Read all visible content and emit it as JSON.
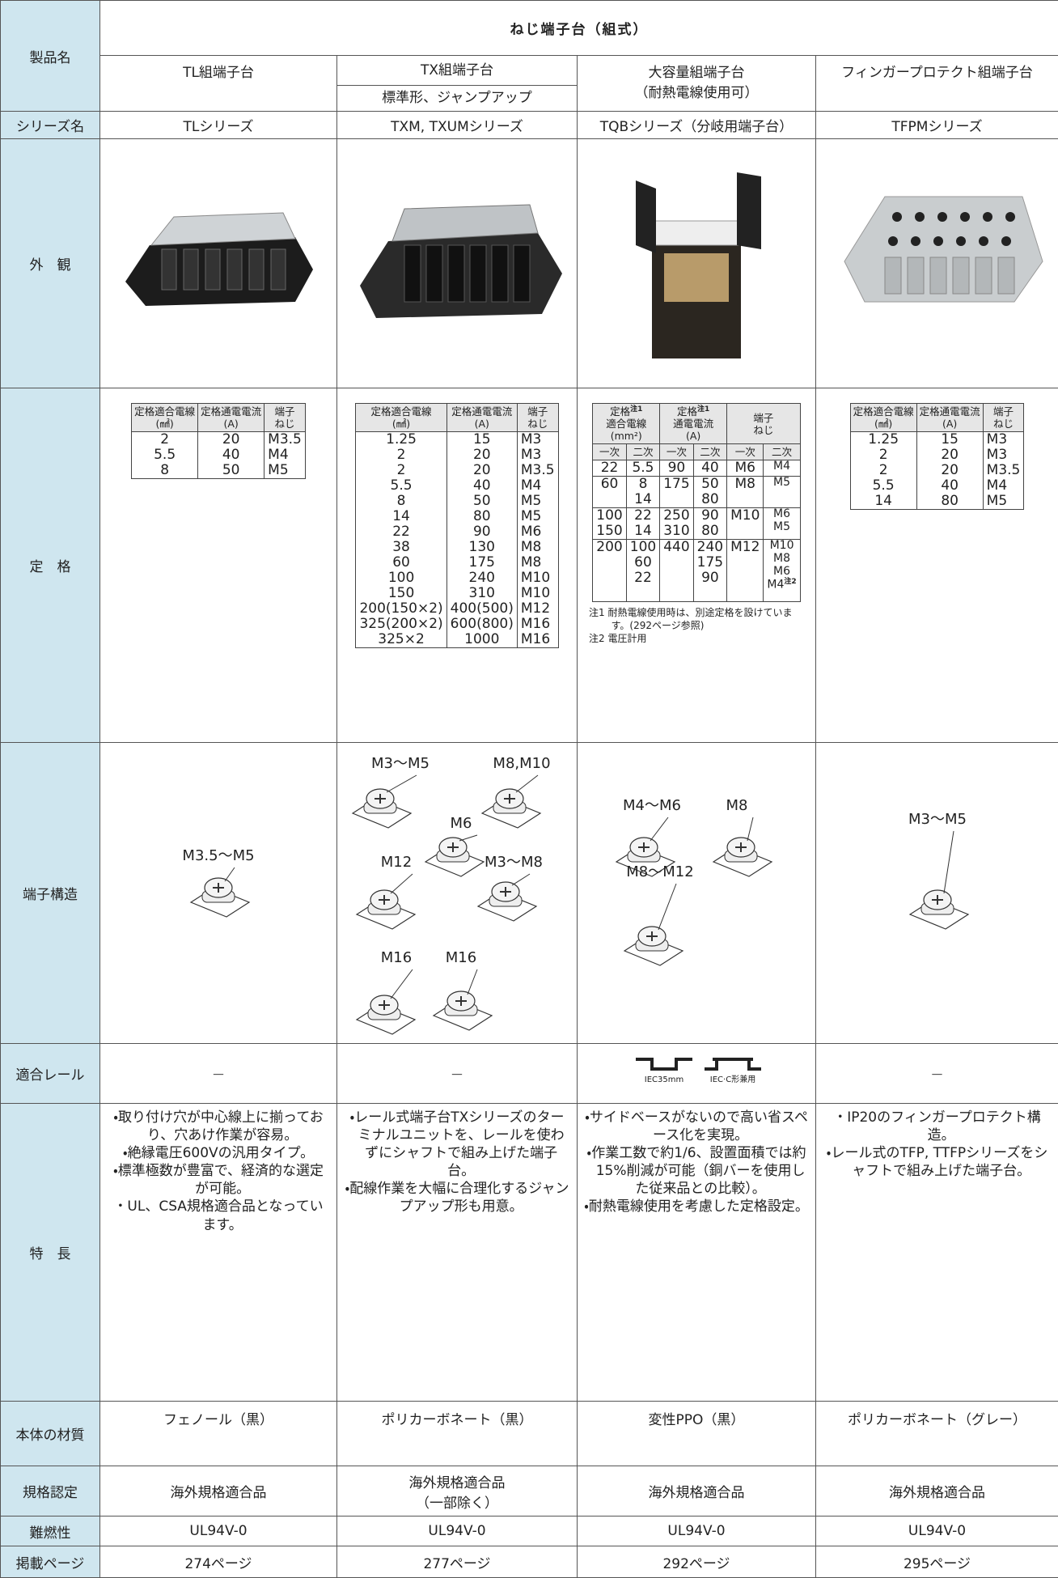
{
  "header": {
    "label": "製品名",
    "title": "ねじ端子台（組式）"
  },
  "products": [
    {
      "name": "TL組端子台"
    },
    {
      "name": "TX組端子台",
      "sub": "標準形、ジャンプアップ"
    },
    {
      "name": "大容量組端子台",
      "name2": "（耐熱電線使用可）"
    },
    {
      "name": "フィンガープロテクト組端子台"
    }
  ],
  "labels": {
    "series": "シリーズ名",
    "appearance": "外　観",
    "rating": "定　格",
    "structure": "端子構造",
    "rail": "適合レール",
    "features": "特　長",
    "material": "本体の材質",
    "standard": "規格認定",
    "flame": "難燃性",
    "page": "掲載ページ"
  },
  "series": [
    "TLシリーズ",
    "TXM, TXUMシリーズ",
    "TQBシリーズ（分岐用端子台）",
    "TFPMシリーズ"
  ],
  "ratings": [
    {
      "headers": [
        [
          "定格適合電線",
          "(㎟)"
        ],
        [
          "定格通電電流",
          "(A)"
        ],
        [
          "端子",
          "ねじ"
        ]
      ],
      "rows": [
        [
          "2",
          "20",
          "M3.5"
        ],
        [
          "5.5",
          "40",
          "M4"
        ],
        [
          "8",
          "50",
          "M5"
        ]
      ]
    },
    {
      "headers": [
        [
          "定格適合電線",
          "(㎟)"
        ],
        [
          "定格通電電流",
          "(A)"
        ],
        [
          "端子",
          "ねじ"
        ]
      ],
      "rows": [
        [
          "1.25",
          "15",
          "M3"
        ],
        [
          "2",
          "20",
          "M3"
        ],
        [
          "2",
          "20",
          "M3.5"
        ],
        [
          "5.5",
          "40",
          "M4"
        ],
        [
          "8",
          "50",
          "M5"
        ],
        [
          "14",
          "80",
          "M5"
        ],
        [
          "22",
          "90",
          "M6"
        ],
        [
          "38",
          "130",
          "M8"
        ],
        [
          "60",
          "175",
          "M8"
        ],
        [
          "100",
          "240",
          "M10"
        ],
        [
          "150",
          "310",
          "M10"
        ],
        [
          "200(150×2)",
          "400(500)",
          "M12"
        ],
        [
          "325(200×2)",
          "600(800)",
          "M16"
        ],
        [
          "325×2",
          "1000",
          "M16"
        ]
      ]
    },
    {
      "headers": [
        {
          "lines": [
            "定格",
            "適合電線",
            "(mm²)"
          ],
          "note": "注1"
        },
        {
          "lines": [
            "定格",
            "通電電流",
            "(A)"
          ],
          "note": "注1"
        },
        {
          "lines": [
            "端子",
            "ねじ"
          ]
        }
      ],
      "sub": [
        "一次",
        "二次",
        "一次",
        "二次",
        "一次",
        "二次"
      ],
      "groups": [
        [
          [
            "22",
            "5.5",
            "90",
            "40",
            "M6",
            "M4"
          ]
        ],
        [
          [
            "60",
            "8",
            "175",
            "50",
            "M8",
            "M5"
          ],
          [
            null,
            "14",
            null,
            "80",
            null,
            null
          ]
        ],
        [
          [
            "100",
            "22",
            "250",
            "90",
            "M10",
            "M6"
          ],
          [
            "150",
            "14",
            "310",
            "80",
            null,
            "M5"
          ]
        ],
        [
          [
            "200",
            "100",
            "440",
            "240",
            "M12",
            "M10"
          ],
          [
            null,
            "60",
            null,
            "175",
            null,
            "M8"
          ],
          [
            null,
            "22",
            null,
            "90",
            null,
            "M6"
          ],
          [
            null,
            null,
            null,
            null,
            null,
            {
              "text": "M4",
              "note": "注2"
            }
          ]
        ]
      ],
      "notes": [
        "注1 耐熱電線使用時は、別途定格を設けています。(292ページ参照)",
        "注2 電圧計用"
      ]
    },
    {
      "headers": [
        [
          "定格適合電線",
          "(㎟)"
        ],
        [
          "定格通電電流",
          "(A)"
        ],
        [
          "端子",
          "ねじ"
        ]
      ],
      "rows": [
        [
          "1.25",
          "15",
          "M3"
        ],
        [
          "2",
          "20",
          "M3"
        ],
        [
          "2",
          "20",
          "M3.5"
        ],
        [
          "5.5",
          "40",
          "M4"
        ],
        [
          "14",
          "80",
          "M5"
        ]
      ]
    }
  ],
  "structures": [
    [
      "M3.5～M5"
    ],
    [
      "M3～M5",
      "M8,M10",
      "M6",
      "M12",
      "M3～M8",
      "M16",
      "M16"
    ],
    [
      "M4～M6",
      "M8",
      "M8～M12"
    ],
    [
      "M3～M5"
    ]
  ],
  "rails": [
    [
      "－"
    ],
    [
      "－"
    ],
    [
      "IEC35mm",
      "IEC·C形兼用"
    ],
    [
      "－"
    ]
  ],
  "features": [
    [
      "・取り付け穴が中心線上に揃っており、穴あけ作業が容易。",
      "・絶縁電圧600Vの汎用タイプ。",
      "・標準極数が豊富で、経済的な選定が可能。",
      "・UL、CSA規格適合品となっています。"
    ],
    [
      "・レール式端子台TXシリーズのターミナルユニットを、レールを使わずにシャフトで組み上げた端子台。",
      "・配線作業を大幅に合理化するジャンプアップ形も用意。"
    ],
    [
      "・サイドベースがないので高い省スペース化を実現。",
      "・作業工数で約1/6、設置面積では約15%削減が可能（銅バーを使用した従来品との比較）。",
      "・耐熱電線使用を考慮した定格設定。"
    ],
    [
      "・IP20のフィンガープロテクト構造。",
      "・レール式のTFP, TTFPシリーズをシャフトで組み上げた端子台。"
    ]
  ],
  "material": [
    "フェノール（黒）",
    "ポリカーボネート（黒）",
    "変性PPO（黒）",
    "ポリカーボネート（グレー）"
  ],
  "standard": [
    [
      "海外規格適合品"
    ],
    [
      "海外規格適合品",
      "（一部除く）"
    ],
    [
      "海外規格適合品"
    ],
    [
      "海外規格適合品"
    ]
  ],
  "flame": [
    "UL94V-0",
    "UL94V-0",
    "UL94V-0",
    "UL94V-0"
  ],
  "page": [
    "274ページ",
    "277ページ",
    "292ページ",
    "295ページ"
  ]
}
